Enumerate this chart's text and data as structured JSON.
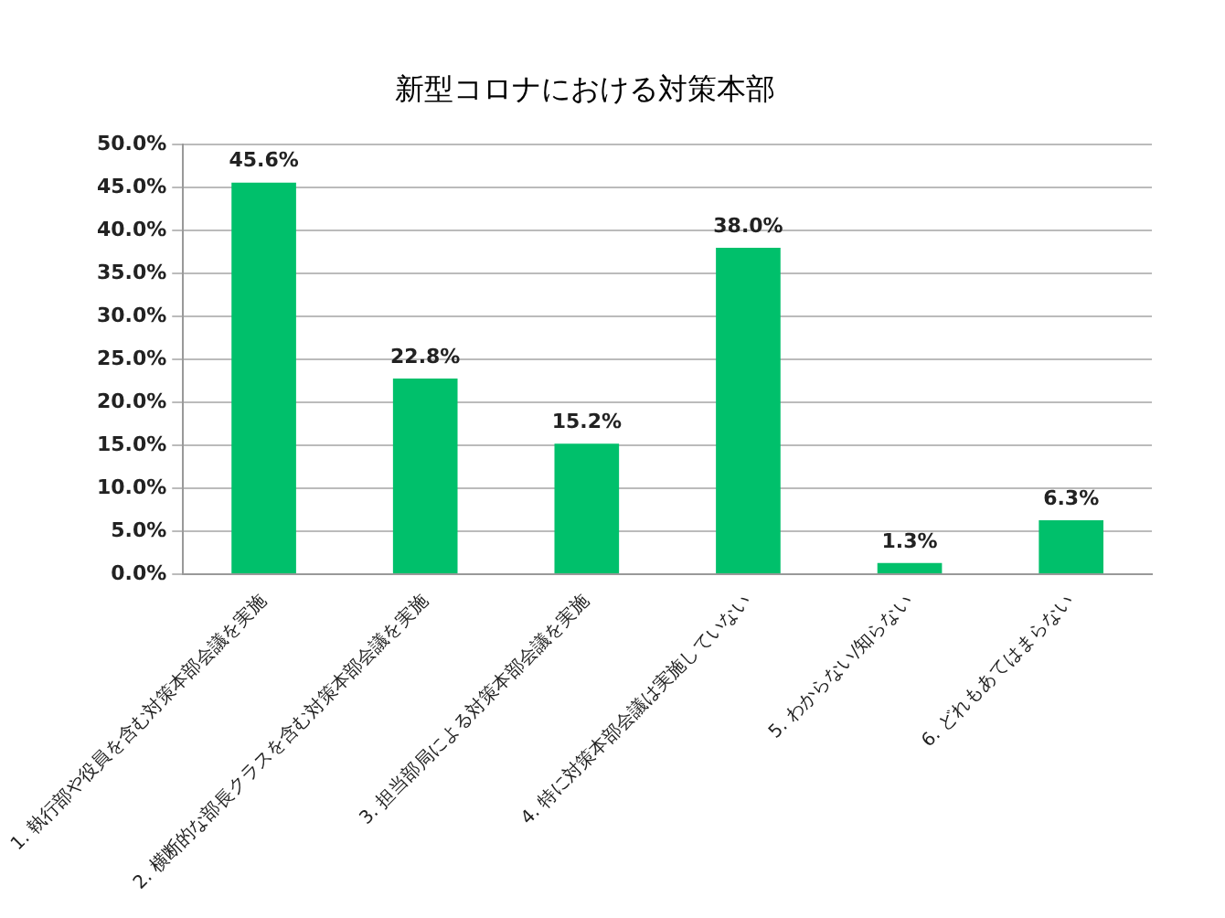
{
  "chart_data": {
    "type": "bar",
    "title": "新型コロナにおける対策本部",
    "categories": [
      "1. 執行部や役員を含む対策本部会議を実施",
      "2. 横断的な部長クラスを含む対策本部会議を実施",
      "3. 担当部局による対策本部会議を実施",
      "4. 特に対策本部会議は実施していない",
      "5. わからない/知らない",
      "6. どれもあてはまらない"
    ],
    "values": [
      45.6,
      22.8,
      15.2,
      38.0,
      1.3,
      6.3
    ],
    "value_labels": [
      "45.6%",
      "22.8%",
      "15.2%",
      "38.0%",
      "1.3%",
      "6.3%"
    ],
    "color": "#00c06b",
    "ylim": [
      0,
      50
    ],
    "yticks": [
      {
        "value": 0,
        "label": "0.0%"
      },
      {
        "value": 5,
        "label": "5.0%"
      },
      {
        "value": 10,
        "label": "10.0%"
      },
      {
        "value": 15,
        "label": "15.0%"
      },
      {
        "value": 20,
        "label": "20.0%"
      },
      {
        "value": 25,
        "label": "25.0%"
      },
      {
        "value": 30,
        "label": "30.0%"
      },
      {
        "value": 35,
        "label": "35.0%"
      },
      {
        "value": 40,
        "label": "40.0%"
      },
      {
        "value": 45,
        "label": "45.0%"
      },
      {
        "value": 50,
        "label": "50.0%"
      }
    ],
    "grid": "y",
    "legend": false
  }
}
